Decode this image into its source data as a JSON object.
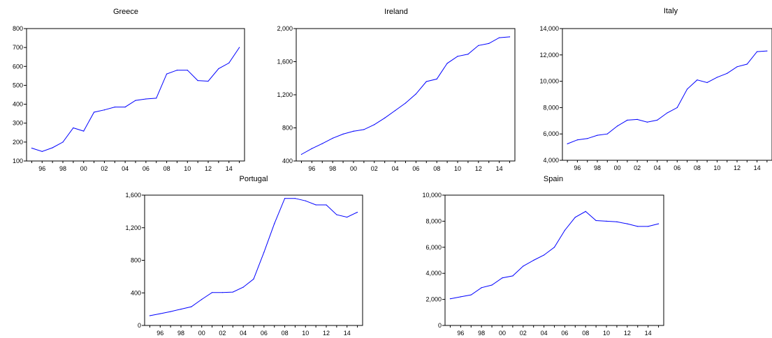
{
  "chart_data": [
    {
      "type": "line",
      "title": "Greece",
      "x": [
        1995,
        1996,
        1997,
        1998,
        1999,
        2000,
        2001,
        2002,
        2003,
        2004,
        2005,
        2006,
        2007,
        2008,
        2009,
        2010,
        2011,
        2012,
        2013,
        2014,
        2015
      ],
      "series": [
        {
          "values": [
            168,
            150,
            170,
            200,
            275,
            258,
            358,
            370,
            385,
            385,
            420,
            428,
            432,
            560,
            580,
            580,
            525,
            522,
            588,
            618,
            700
          ]
        }
      ],
      "ylim": [
        100,
        800
      ],
      "yticks": [
        "100",
        "200",
        "300",
        "400",
        "500",
        "600",
        "700",
        "800"
      ],
      "xticks": [
        "96",
        "98",
        "00",
        "02",
        "04",
        "06",
        "08",
        "10",
        "12",
        "14"
      ],
      "color": "#0000ff",
      "xlabel": "",
      "ylabel": ""
    },
    {
      "type": "line",
      "title": "Ireland",
      "x": [
        1995,
        1996,
        1997,
        1998,
        1999,
        2000,
        2001,
        2002,
        2003,
        2004,
        2005,
        2006,
        2007,
        2008,
        2009,
        2010,
        2011,
        2012,
        2013,
        2014,
        2015
      ],
      "series": [
        {
          "values": [
            480,
            550,
            610,
            675,
            725,
            760,
            780,
            840,
            920,
            1010,
            1100,
            1210,
            1360,
            1390,
            1580,
            1665,
            1690,
            1795,
            1820,
            1890,
            1900
          ]
        }
      ],
      "ylim": [
        400,
        2000
      ],
      "yticks": [
        "400",
        "800",
        "1,200",
        "1,600",
        "2,000"
      ],
      "xticks": [
        "96",
        "98",
        "00",
        "02",
        "04",
        "06",
        "08",
        "10",
        "12",
        "14"
      ],
      "color": "#0000ff",
      "xlabel": "",
      "ylabel": ""
    },
    {
      "type": "line",
      "title": "Italy",
      "x": [
        1995,
        1996,
        1997,
        1998,
        1999,
        2000,
        2001,
        2002,
        2003,
        2004,
        2005,
        2006,
        2007,
        2008,
        2009,
        2010,
        2011,
        2012,
        2013,
        2014,
        2015
      ],
      "series": [
        {
          "values": [
            5250,
            5550,
            5650,
            5900,
            6000,
            6600,
            7050,
            7100,
            6900,
            7050,
            7600,
            8000,
            9400,
            10100,
            9900,
            10300,
            10600,
            11100,
            11300,
            12250,
            12300
          ]
        }
      ],
      "ylim": [
        4000,
        14000
      ],
      "yticks": [
        "4,000",
        "6,000",
        "8,000",
        "10,000",
        "12,000",
        "14,000"
      ],
      "xticks": [
        "96",
        "98",
        "00",
        "02",
        "04",
        "06",
        "08",
        "10",
        "12",
        "14"
      ],
      "color": "#0000ff",
      "xlabel": "",
      "ylabel": ""
    },
    {
      "type": "line",
      "title": "Portugal",
      "x": [
        1995,
        1996,
        1997,
        1998,
        1999,
        2000,
        2001,
        2002,
        2003,
        2004,
        2005,
        2006,
        2007,
        2008,
        2009,
        2010,
        2011,
        2012,
        2013,
        2014,
        2015
      ],
      "series": [
        {
          "values": [
            120,
            145,
            170,
            200,
            230,
            320,
            405,
            405,
            410,
            470,
            570,
            900,
            1250,
            1560,
            1560,
            1530,
            1480,
            1480,
            1360,
            1330,
            1390
          ]
        }
      ],
      "ylim": [
        0,
        1600
      ],
      "yticks": [
        "0",
        "400",
        "800",
        "1,200",
        "1,600"
      ],
      "xticks": [
        "96",
        "98",
        "00",
        "02",
        "04",
        "06",
        "08",
        "10",
        "12",
        "14"
      ],
      "color": "#0000ff",
      "xlabel": "",
      "ylabel": ""
    },
    {
      "type": "line",
      "title": "Spain",
      "x": [
        1995,
        1996,
        1997,
        1998,
        1999,
        2000,
        2001,
        2002,
        2003,
        2004,
        2005,
        2006,
        2007,
        2008,
        2009,
        2010,
        2011,
        2012,
        2013,
        2014,
        2015
      ],
      "series": [
        {
          "values": [
            2050,
            2200,
            2350,
            2900,
            3100,
            3650,
            3800,
            4550,
            5000,
            5400,
            6000,
            7300,
            8300,
            8750,
            8050,
            8000,
            7950,
            7800,
            7600,
            7600,
            7800
          ]
        }
      ],
      "ylim": [
        0,
        10000
      ],
      "yticks": [
        "0",
        "2,000",
        "4,000",
        "6,000",
        "8,000",
        "10,000"
      ],
      "xticks": [
        "96",
        "98",
        "00",
        "02",
        "04",
        "06",
        "08",
        "10",
        "12",
        "14"
      ],
      "color": "#0000ff",
      "xlabel": "",
      "ylabel": ""
    }
  ]
}
